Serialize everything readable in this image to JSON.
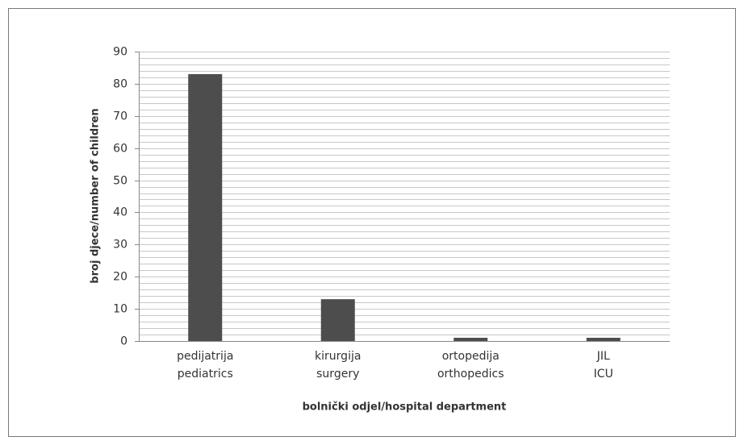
{
  "chart_data": {
    "type": "bar",
    "categories": [
      [
        "pedijatrija",
        "pediatrics"
      ],
      [
        "kirurgija",
        "surgery"
      ],
      [
        "ortopedija",
        "orthopedics"
      ],
      [
        "JIL",
        "ICU"
      ]
    ],
    "values": [
      83,
      13,
      1,
      1
    ],
    "color": "#4d4d4d",
    "ylim": [
      0,
      90
    ],
    "yticks": [
      0,
      10,
      20,
      30,
      40,
      50,
      60,
      70,
      80,
      90
    ],
    "minor_yticks": [
      2,
      4,
      6,
      8,
      12,
      14,
      16,
      18,
      22,
      24,
      26,
      28,
      32,
      34,
      36,
      38,
      42,
      44,
      46,
      48,
      52,
      54,
      56,
      58,
      62,
      64,
      66,
      68,
      72,
      74,
      76,
      78,
      82,
      84,
      86,
      88
    ],
    "grid": true,
    "y_label": "broj djece/number of children",
    "x_label": "bolnički odjel/hospital department"
  }
}
